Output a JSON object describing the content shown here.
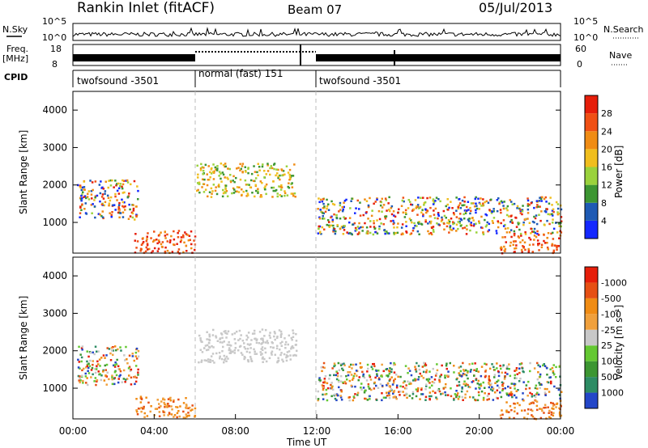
{
  "header": {
    "station": "Rankin Inlet (fitACF)",
    "beam": "Beam 07",
    "date": "05/Jul/2013"
  },
  "strip": {
    "nsky_label": "N.Sky",
    "nsky_ticks": [
      "10^5",
      "10^0"
    ],
    "nsearch_label": "N.Search",
    "nsearch_ticks": [
      "10^5",
      "10^0"
    ],
    "freq_label": "Freq.",
    "freq_unit": "[MHz]",
    "freq_ticks": [
      "18",
      "8"
    ],
    "nave_label": "Nave",
    "nave_ticks": [
      "60",
      "0"
    ],
    "cpid_label": "CPID",
    "cpid_segments": [
      {
        "label": "twofsound -3501",
        "start": 0,
        "end": 6
      },
      {
        "label": "normal (fast) 151",
        "start": 6,
        "end": 12
      },
      {
        "label": "twofsound -3501",
        "start": 12,
        "end": 24
      }
    ]
  },
  "chart_data": [
    {
      "type": "heatmap",
      "title": "",
      "ylabel": "Slant Range [km]",
      "xlabel": "",
      "ylim": [
        180,
        4500
      ],
      "xlim": [
        0,
        24
      ],
      "yticks": [
        "1000",
        "2000",
        "3000",
        "4000"
      ],
      "colorbar_label": "Power [dB]",
      "colorbar_ticks": [
        "4",
        "8",
        "12",
        "16",
        "20",
        "24",
        "28"
      ],
      "colors": [
        "#1428ff",
        "#1e5ab4",
        "#3c9632",
        "#9ad23c",
        "#f0be1e",
        "#f08c14",
        "#f05014",
        "#e61e0a"
      ],
      "scatter_regions": [
        {
          "t0": 0.2,
          "t1": 3.2,
          "r0": 1100,
          "r1": 2150,
          "value": "mixed"
        },
        {
          "t0": 3.0,
          "t1": 6.0,
          "r0": 200,
          "r1": 800,
          "value": "high"
        },
        {
          "t0": 6.0,
          "t1": 11.0,
          "r0": 1700,
          "r1": 2600,
          "value": "mid"
        },
        {
          "t0": 12.0,
          "t1": 24.0,
          "r0": 700,
          "r1": 1700,
          "value": "mixed"
        },
        {
          "t0": 21.0,
          "t1": 24.0,
          "r0": 200,
          "r1": 700,
          "value": "high"
        }
      ]
    },
    {
      "type": "heatmap",
      "title": "",
      "ylabel": "Slant Range [km]",
      "xlabel": "Time UT",
      "ylim": [
        180,
        4500
      ],
      "xlim": [
        0,
        24
      ],
      "yticks": [
        "1000",
        "2000",
        "3000",
        "4000"
      ],
      "xticks": [
        "00:00",
        "04:00",
        "08:00",
        "12:00",
        "16:00",
        "20:00",
        "00:00"
      ],
      "colorbar_label": "Velocity [m s⁻¹]",
      "colorbar_ticks": [
        "1000",
        "500",
        "100",
        "25",
        "-25",
        "-100",
        "-500",
        "-1000"
      ],
      "colors": [
        "#2346c8",
        "#2d8c64",
        "#3c9632",
        "#64c832",
        "#c8c8c8",
        "#f0a03c",
        "#f08c14",
        "#e65014",
        "#e61e0a"
      ]
    }
  ]
}
